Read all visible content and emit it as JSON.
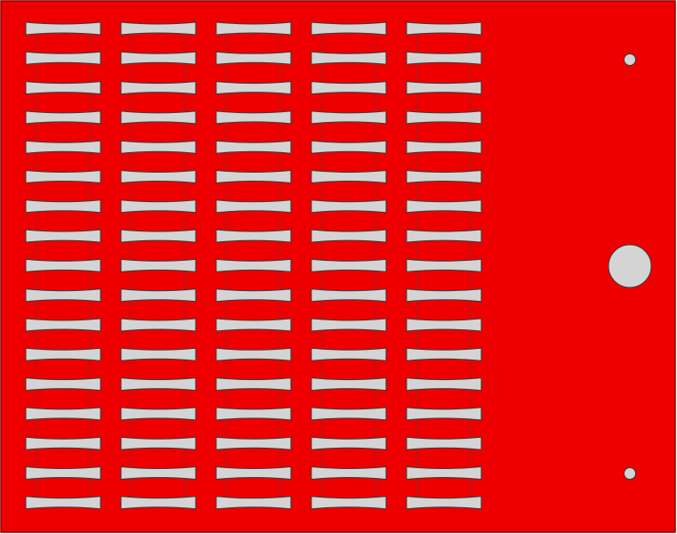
{
  "colors": {
    "plate": "#ee0000",
    "plate_edge": "#8a0000",
    "cutout": "#d4d4d4",
    "cutout_edge": "#3a3a3a",
    "bridge_line": "#9a2020"
  },
  "features": {
    "slot_shape": "bowtie-slot",
    "holes": [
      "small-hole",
      "large-hole",
      "small-hole"
    ]
  }
}
